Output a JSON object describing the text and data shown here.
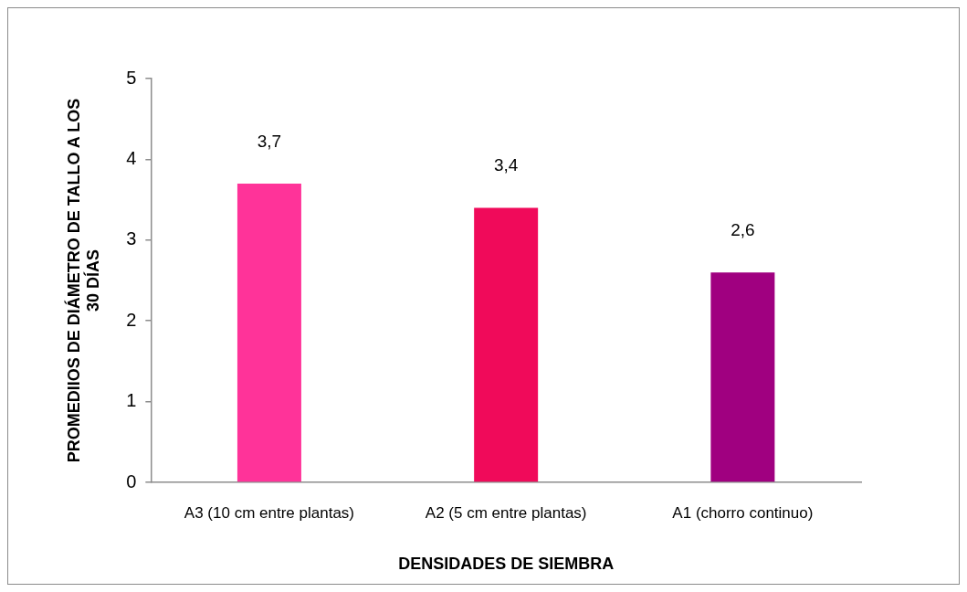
{
  "chart_data": {
    "type": "bar",
    "xlabel": "DENSIDADES DE SIEMBRA",
    "ylabel": "PROMEDIIOS DE DIÁMETRO DE TALLO A LOS 30 DÍAS",
    "categories": [
      "A3 (10 cm entre plantas)",
      "A2 (5 cm entre plantas)",
      "A1 (chorro continuo)"
    ],
    "values": [
      3.7,
      3.4,
      2.6
    ],
    "colors": [
      "#ff3399",
      "#f00a5a",
      "#a00080"
    ],
    "value_labels": [
      "3,7",
      "3,4",
      "2,6"
    ],
    "ylim": [
      0,
      5
    ],
    "yticks": [
      0,
      1,
      2,
      3,
      4,
      5
    ]
  }
}
